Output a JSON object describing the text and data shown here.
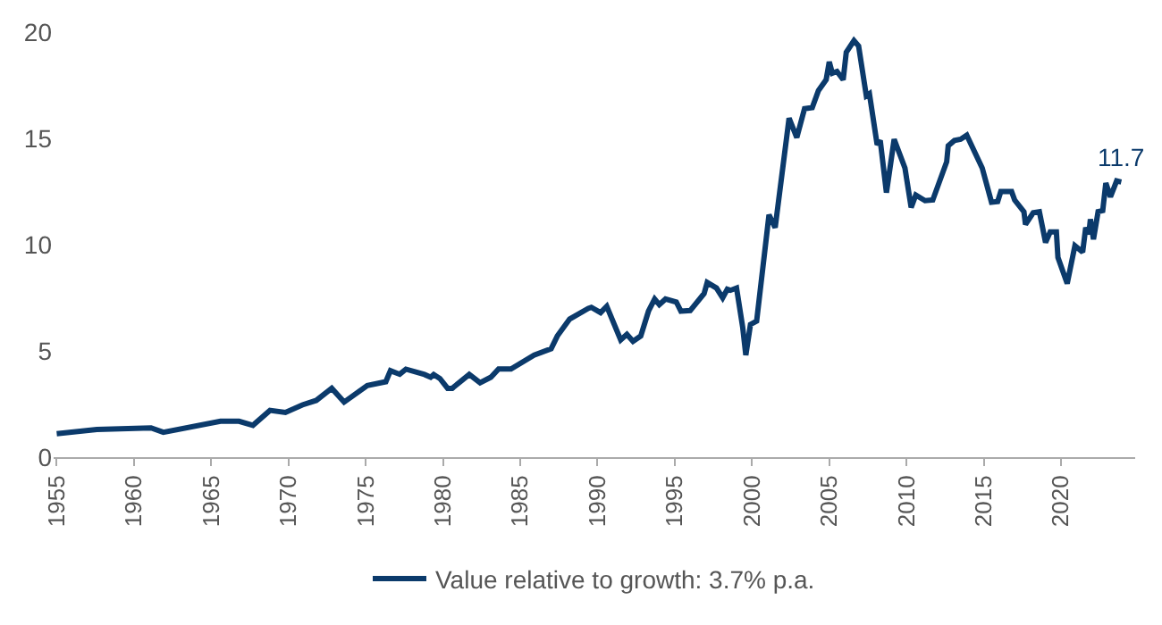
{
  "chart_data": {
    "type": "line",
    "legend": "bottom",
    "marker": "none",
    "line_style": "solid",
    "xlim": [
      1954.8,
      2024.8
    ],
    "xticks": [
      1955,
      1960,
      1965,
      1970,
      1975,
      1980,
      1985,
      1990,
      1995,
      2000,
      2005,
      2010,
      2015,
      2020
    ],
    "ylim": [
      0,
      20
    ],
    "yticks": [
      0,
      5,
      10,
      15,
      20
    ],
    "annotations": [
      "11.7"
    ],
    "series": [
      {
        "name": "Value relative to growth: 3.7% p.a.",
        "color": "#0b3a6b",
        "x": [
          1955.0,
          1957.6,
          1961.1,
          1961.9,
          1965.6,
          1966.8,
          1967.7,
          1968.8,
          1969.8,
          1970.9,
          1971.8,
          1972.8,
          1973.6,
          1975.1,
          1976.3,
          1976.6,
          1977.2,
          1977.6,
          1978.8,
          1979.2,
          1979.4,
          1979.8,
          1980.3,
          1980.6,
          1981.7,
          1982.4,
          1983.1,
          1983.6,
          1984.4,
          1985.9,
          1987.0,
          1987.4,
          1988.2,
          1989.4,
          1989.6,
          1990.2,
          1990.6,
          1991.5,
          1991.9,
          1992.3,
          1992.8,
          1993.3,
          1993.7,
          1994.0,
          1994.4,
          1995.1,
          1995.4,
          1996.0,
          1996.9,
          1997.1,
          1997.7,
          1998.1,
          1998.4,
          1998.6,
          1999.0,
          1999.4,
          1999.6,
          1999.9,
          2000.3,
          2001.1,
          2001.5,
          2002.4,
          2002.9,
          2003.4,
          2003.9,
          2004.3,
          2004.8,
          2005.0,
          2005.2,
          2005.5,
          2005.9,
          2006.1,
          2006.6,
          2006.9,
          2007.4,
          2007.6,
          2008.1,
          2008.3,
          2008.7,
          2009.2,
          2009.9,
          2010.3,
          2010.6,
          2011.2,
          2011.7,
          2012.6,
          2012.7,
          2013.1,
          2013.5,
          2013.9,
          2014.9,
          2015.5,
          2015.9,
          2016.1,
          2016.8,
          2017.0,
          2017.6,
          2017.7,
          2018.2,
          2018.6,
          2019.0,
          2019.3,
          2019.7,
          2019.8,
          2020.4,
          2020.9,
          2021.4,
          2021.6,
          2021.8,
          2021.9,
          2022.1,
          2022.4,
          2022.7,
          2022.9,
          2023.2,
          2023.6,
          2023.9
        ],
        "values": [
          1.1,
          1.3,
          1.38,
          1.17,
          1.69,
          1.69,
          1.5,
          2.2,
          2.1,
          2.46,
          2.67,
          3.24,
          2.59,
          3.37,
          3.55,
          4.07,
          3.9,
          4.14,
          3.89,
          3.76,
          3.89,
          3.7,
          3.24,
          3.24,
          3.89,
          3.5,
          3.76,
          4.15,
          4.15,
          4.8,
          5.1,
          5.7,
          6.5,
          7.0,
          7.05,
          6.8,
          7.1,
          5.52,
          5.78,
          5.45,
          5.7,
          6.87,
          7.44,
          7.18,
          7.44,
          7.3,
          6.87,
          6.9,
          7.7,
          8.22,
          7.96,
          7.5,
          7.9,
          7.85,
          7.96,
          6.1,
          4.8,
          6.24,
          6.4,
          11.4,
          10.8,
          15.95,
          15.04,
          16.4,
          16.45,
          17.25,
          17.76,
          18.6,
          18.07,
          18.15,
          17.76,
          19.05,
          19.6,
          19.35,
          17.0,
          17.1,
          14.7,
          14.9,
          12.45,
          14.96,
          13.6,
          11.75,
          12.33,
          12.07,
          12.1,
          13.9,
          14.65,
          14.9,
          14.96,
          15.15,
          13.6,
          12.0,
          12.03,
          12.5,
          12.5,
          12.1,
          11.55,
          10.95,
          11.5,
          11.55,
          10.1,
          10.6,
          10.6,
          9.4,
          8.17,
          9.95,
          9.65,
          10.8,
          10.5,
          11.2,
          10.25,
          11.55,
          11.6,
          12.9,
          12.25,
          13.0,
          12.95
        ]
      }
    ]
  }
}
